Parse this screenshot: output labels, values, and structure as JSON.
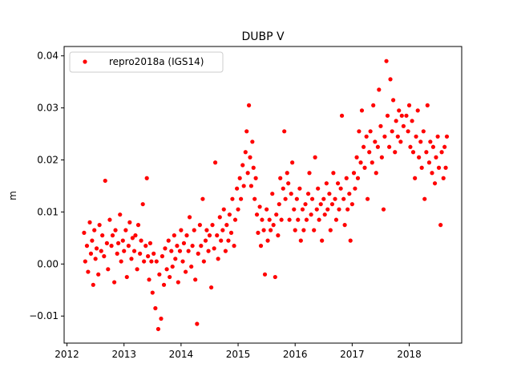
{
  "chart_data": {
    "type": "scatter",
    "title": "DUBP V",
    "xlabel": "",
    "ylabel": "m",
    "xlim": [
      2011.95,
      2018.92
    ],
    "ylim": [
      -0.0152,
      0.0418
    ],
    "xticks": [
      2012,
      2013,
      2014,
      2015,
      2016,
      2017,
      2018
    ],
    "xtick_labels": [
      "2012",
      "2013",
      "2014",
      "2015",
      "2016",
      "2017",
      "2018"
    ],
    "yticks": [
      -0.01,
      0.0,
      0.01,
      0.02,
      0.03,
      0.04
    ],
    "ytick_labels": [
      "−0.01",
      "0.00",
      "0.01",
      "0.02",
      "0.03",
      "0.04"
    ],
    "grid": false,
    "legend": {
      "placement": "top-left",
      "entries": [
        "repro2018a (IGS14)"
      ]
    },
    "series": [
      {
        "name": "repro2018a (IGS14)",
        "color": "#ff0000",
        "marker": "circle",
        "points": [
          [
            2012.3,
            0.006
          ],
          [
            2012.32,
            0.0005
          ],
          [
            2012.35,
            0.0035
          ],
          [
            2012.37,
            -0.0015
          ],
          [
            2012.4,
            0.008
          ],
          [
            2012.42,
            0.002
          ],
          [
            2012.44,
            0.0045
          ],
          [
            2012.46,
            -0.004
          ],
          [
            2012.48,
            0.0065
          ],
          [
            2012.5,
            0.001
          ],
          [
            2012.52,
            0.003
          ],
          [
            2012.55,
            -0.002
          ],
          [
            2012.57,
            0.0075
          ],
          [
            2012.6,
            0.0025
          ],
          [
            2012.62,
            0.0055
          ],
          [
            2012.65,
            0.0015
          ],
          [
            2012.67,
            0.016
          ],
          [
            2012.7,
            0.004
          ],
          [
            2012.72,
            -0.001
          ],
          [
            2012.75,
            0.0085
          ],
          [
            2012.78,
            0.0035
          ],
          [
            2012.8,
            0.0055
          ],
          [
            2012.83,
            -0.0035
          ],
          [
            2012.85,
            0.0065
          ],
          [
            2012.88,
            0.002
          ],
          [
            2012.9,
            0.004
          ],
          [
            2012.93,
            0.0095
          ],
          [
            2012.95,
            0.0005
          ],
          [
            2012.98,
            0.0045
          ],
          [
            2013.0,
            0.0025
          ],
          [
            2013.03,
            0.0065
          ],
          [
            2013.05,
            -0.0025
          ],
          [
            2013.08,
            0.0035
          ],
          [
            2013.1,
            0.008
          ],
          [
            2013.13,
            0.001
          ],
          [
            2013.15,
            0.005
          ],
          [
            2013.18,
            0.0025
          ],
          [
            2013.2,
            0.0055
          ],
          [
            2013.23,
            -0.001
          ],
          [
            2013.25,
            0.0075
          ],
          [
            2013.28,
            0.002
          ],
          [
            2013.3,
            0.0045
          ],
          [
            2013.33,
            0.0115
          ],
          [
            2013.35,
            0.0005
          ],
          [
            2013.38,
            0.0035
          ],
          [
            2013.4,
            0.0165
          ],
          [
            2013.42,
            0.0015
          ],
          [
            2013.44,
            -0.003
          ],
          [
            2013.46,
            0.004
          ],
          [
            2013.48,
            0.0005
          ],
          [
            2013.5,
            -0.0055
          ],
          [
            2013.52,
            0.002
          ],
          [
            2013.55,
            -0.0085
          ],
          [
            2013.57,
            0.0005
          ],
          [
            2013.6,
            -0.0125
          ],
          [
            2013.62,
            -0.002
          ],
          [
            2013.65,
            -0.0105
          ],
          [
            2013.67,
            0.0015
          ],
          [
            2013.7,
            -0.004
          ],
          [
            2013.72,
            0.003
          ],
          [
            2013.75,
            -0.001
          ],
          [
            2013.78,
            0.0045
          ],
          [
            2013.8,
            -0.0025
          ],
          [
            2013.83,
            0.0025
          ],
          [
            2013.85,
            -0.0005
          ],
          [
            2013.88,
            0.0055
          ],
          [
            2013.9,
            0.001
          ],
          [
            2013.93,
            0.0035
          ],
          [
            2013.95,
            -0.0035
          ],
          [
            2013.98,
            0.0025
          ],
          [
            2014.0,
            0.0065
          ],
          [
            2014.03,
            0.0005
          ],
          [
            2014.05,
            0.004
          ],
          [
            2014.08,
            -0.0015
          ],
          [
            2014.1,
            0.0055
          ],
          [
            2014.13,
            0.0025
          ],
          [
            2014.15,
            0.009
          ],
          [
            2014.18,
            -0.0005
          ],
          [
            2014.2,
            0.0035
          ],
          [
            2014.23,
            0.0065
          ],
          [
            2014.25,
            -0.003
          ],
          [
            2014.28,
            -0.0115
          ],
          [
            2014.3,
            0.002
          ],
          [
            2014.33,
            0.0075
          ],
          [
            2014.35,
            0.0035
          ],
          [
            2014.38,
            0.0125
          ],
          [
            2014.4,
            0.0005
          ],
          [
            2014.43,
            0.0045
          ],
          [
            2014.45,
            0.0065
          ],
          [
            2014.48,
            0.0025
          ],
          [
            2014.5,
            0.0055
          ],
          [
            2014.53,
            -0.0045
          ],
          [
            2014.55,
            0.0075
          ],
          [
            2014.58,
            0.003
          ],
          [
            2014.6,
            0.0195
          ],
          [
            2014.63,
            0.0055
          ],
          [
            2014.65,
            0.001
          ],
          [
            2014.68,
            0.009
          ],
          [
            2014.7,
            0.0045
          ],
          [
            2014.73,
            0.0065
          ],
          [
            2014.75,
            0.0105
          ],
          [
            2014.78,
            0.0025
          ],
          [
            2014.8,
            0.0075
          ],
          [
            2014.83,
            0.0045
          ],
          [
            2014.85,
            0.0095
          ],
          [
            2014.88,
            0.006
          ],
          [
            2014.9,
            0.0125
          ],
          [
            2014.93,
            0.0035
          ],
          [
            2014.95,
            0.0085
          ],
          [
            2014.98,
            0.0145
          ],
          [
            2015.0,
            0.0105
          ],
          [
            2015.03,
            0.0165
          ],
          [
            2015.05,
            0.0125
          ],
          [
            2015.08,
            0.019
          ],
          [
            2015.1,
            0.015
          ],
          [
            2015.13,
            0.0215
          ],
          [
            2015.15,
            0.0255
          ],
          [
            2015.17,
            0.0175
          ],
          [
            2015.19,
            0.0305
          ],
          [
            2015.21,
            0.0205
          ],
          [
            2015.23,
            0.015
          ],
          [
            2015.25,
            0.0235
          ],
          [
            2015.27,
            0.0185
          ],
          [
            2015.29,
            0.0125
          ],
          [
            2015.31,
            0.0165
          ],
          [
            2015.33,
            0.0095
          ],
          [
            2015.35,
            0.006
          ],
          [
            2015.38,
            0.011
          ],
          [
            2015.4,
            0.0035
          ],
          [
            2015.42,
            0.0085
          ],
          [
            2015.45,
            0.0065
          ],
          [
            2015.47,
            -0.002
          ],
          [
            2015.5,
            0.0105
          ],
          [
            2015.52,
            0.0045
          ],
          [
            2015.55,
            0.0085
          ],
          [
            2015.57,
            0.0065
          ],
          [
            2015.6,
            0.0135
          ],
          [
            2015.62,
            0.0075
          ],
          [
            2015.65,
            -0.0025
          ],
          [
            2015.67,
            0.0095
          ],
          [
            2015.7,
            0.0055
          ],
          [
            2015.72,
            0.0115
          ],
          [
            2015.74,
            0.0165
          ],
          [
            2015.76,
            0.0085
          ],
          [
            2015.79,
            0.0145
          ],
          [
            2015.81,
            0.0255
          ],
          [
            2015.83,
            0.0125
          ],
          [
            2015.86,
            0.0175
          ],
          [
            2015.88,
            0.0155
          ],
          [
            2015.9,
            0.0085
          ],
          [
            2015.93,
            0.0135
          ],
          [
            2015.95,
            0.0195
          ],
          [
            2015.98,
            0.0105
          ],
          [
            2016.0,
            0.0065
          ],
          [
            2016.03,
            0.0125
          ],
          [
            2016.05,
            0.0085
          ],
          [
            2016.08,
            0.0145
          ],
          [
            2016.1,
            0.0045
          ],
          [
            2016.13,
            0.0105
          ],
          [
            2016.15,
            0.0065
          ],
          [
            2016.18,
            0.0115
          ],
          [
            2016.2,
            0.0085
          ],
          [
            2016.23,
            0.0135
          ],
          [
            2016.25,
            0.0175
          ],
          [
            2016.28,
            0.0095
          ],
          [
            2016.3,
            0.0125
          ],
          [
            2016.33,
            0.0065
          ],
          [
            2016.35,
            0.0205
          ],
          [
            2016.38,
            0.0105
          ],
          [
            2016.4,
            0.0145
          ],
          [
            2016.42,
            0.0085
          ],
          [
            2016.45,
            0.0115
          ],
          [
            2016.47,
            0.0045
          ],
          [
            2016.5,
            0.0125
          ],
          [
            2016.52,
            0.0095
          ],
          [
            2016.55,
            0.0155
          ],
          [
            2016.57,
            0.0105
          ],
          [
            2016.6,
            0.0135
          ],
          [
            2016.62,
            0.0065
          ],
          [
            2016.65,
            0.0115
          ],
          [
            2016.67,
            0.0175
          ],
          [
            2016.7,
            0.0125
          ],
          [
            2016.72,
            0.0085
          ],
          [
            2016.75,
            0.0155
          ],
          [
            2016.77,
            0.0105
          ],
          [
            2016.8,
            0.0145
          ],
          [
            2016.82,
            0.0285
          ],
          [
            2016.85,
            0.0125
          ],
          [
            2016.87,
            0.0075
          ],
          [
            2016.9,
            0.0165
          ],
          [
            2016.92,
            0.0105
          ],
          [
            2016.95,
            0.0135
          ],
          [
            2016.97,
            0.0045
          ],
          [
            2017.0,
            0.0115
          ],
          [
            2017.03,
            0.0175
          ],
          [
            2017.05,
            0.0145
          ],
          [
            2017.08,
            0.0205
          ],
          [
            2017.1,
            0.0165
          ],
          [
            2017.12,
            0.0255
          ],
          [
            2017.15,
            0.0195
          ],
          [
            2017.17,
            0.0295
          ],
          [
            2017.2,
            0.0225
          ],
          [
            2017.22,
            0.0185
          ],
          [
            2017.25,
            0.0245
          ],
          [
            2017.27,
            0.0125
          ],
          [
            2017.3,
            0.0215
          ],
          [
            2017.32,
            0.0255
          ],
          [
            2017.35,
            0.0195
          ],
          [
            2017.37,
            0.0305
          ],
          [
            2017.4,
            0.0235
          ],
          [
            2017.42,
            0.0175
          ],
          [
            2017.45,
            0.0225
          ],
          [
            2017.47,
            0.0335
          ],
          [
            2017.5,
            0.0265
          ],
          [
            2017.52,
            0.0205
          ],
          [
            2017.55,
            0.0105
          ],
          [
            2017.57,
            0.0245
          ],
          [
            2017.6,
            0.039
          ],
          [
            2017.62,
            0.0285
          ],
          [
            2017.65,
            0.0225
          ],
          [
            2017.67,
            0.0355
          ],
          [
            2017.7,
            0.0255
          ],
          [
            2017.72,
            0.0315
          ],
          [
            2017.75,
            0.0215
          ],
          [
            2017.77,
            0.0275
          ],
          [
            2017.8,
            0.0245
          ],
          [
            2017.82,
            0.0295
          ],
          [
            2017.85,
            0.0235
          ],
          [
            2017.87,
            0.0285
          ],
          [
            2017.9,
            0.0265
          ],
          [
            2017.95,
            0.0285
          ],
          [
            2017.98,
            0.0255
          ],
          [
            2018.0,
            0.0305
          ],
          [
            2018.02,
            0.0225
          ],
          [
            2018.05,
            0.0275
          ],
          [
            2018.07,
            0.0215
          ],
          [
            2018.1,
            0.0165
          ],
          [
            2018.12,
            0.0245
          ],
          [
            2018.15,
            0.0295
          ],
          [
            2018.17,
            0.0205
          ],
          [
            2018.2,
            0.0235
          ],
          [
            2018.22,
            0.0185
          ],
          [
            2018.25,
            0.0255
          ],
          [
            2018.27,
            0.0125
          ],
          [
            2018.3,
            0.0215
          ],
          [
            2018.32,
            0.0305
          ],
          [
            2018.35,
            0.0195
          ],
          [
            2018.37,
            0.0235
          ],
          [
            2018.4,
            0.0175
          ],
          [
            2018.42,
            0.0225
          ],
          [
            2018.45,
            0.0155
          ],
          [
            2018.47,
            0.0205
          ],
          [
            2018.5,
            0.0245
          ],
          [
            2018.52,
            0.0185
          ],
          [
            2018.55,
            0.0075
          ],
          [
            2018.57,
            0.0215
          ],
          [
            2018.6,
            0.0165
          ],
          [
            2018.62,
            0.0225
          ],
          [
            2018.64,
            0.0185
          ],
          [
            2018.66,
            0.0245
          ]
        ]
      }
    ]
  }
}
